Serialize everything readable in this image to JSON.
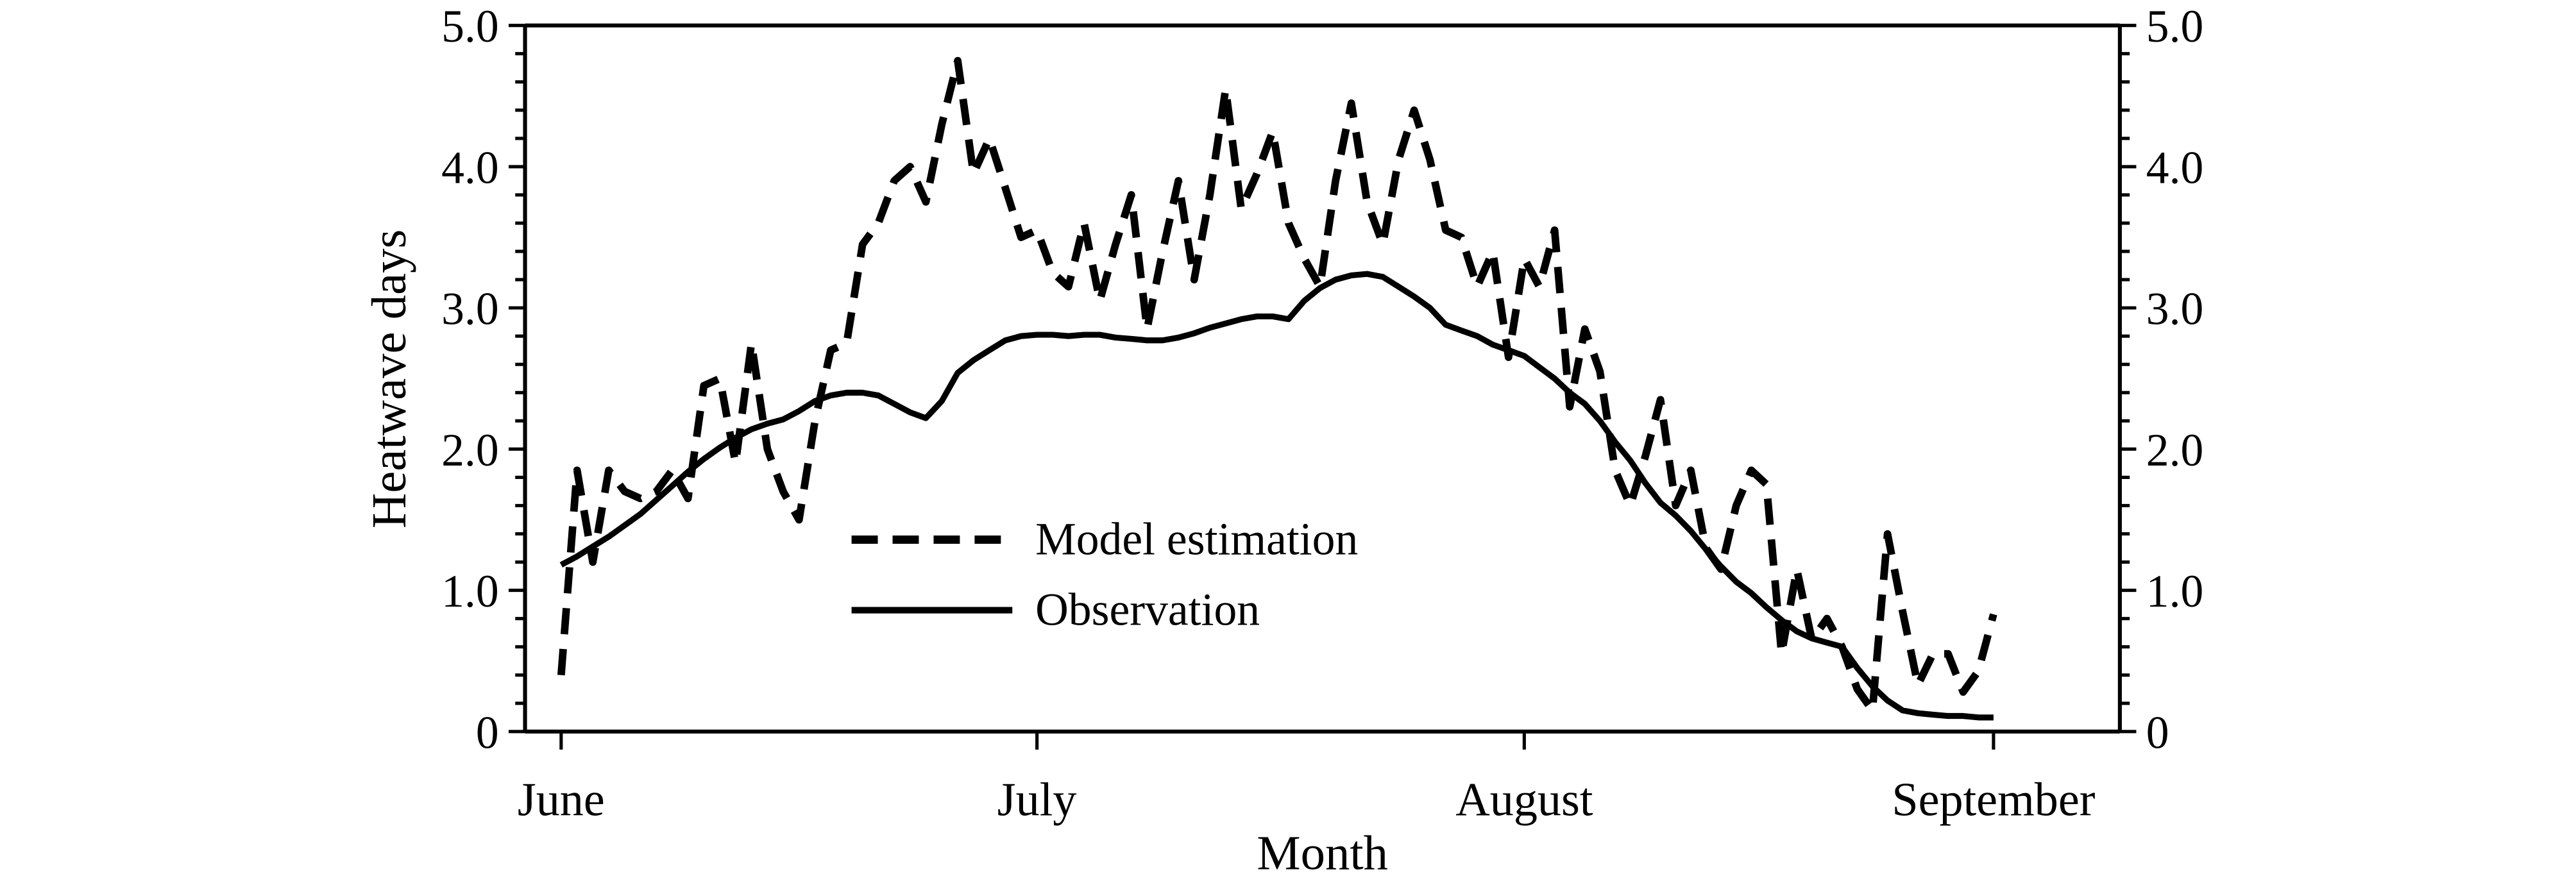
{
  "figure": {
    "background": "#ffffff",
    "line_color": "#000000"
  },
  "y_axis": {
    "title": "Heatwave days",
    "range": [
      0,
      5
    ],
    "major_step": 1.0,
    "minor_step": 0.2,
    "tick_labels": [
      "0",
      "1.0",
      "2.0",
      "3.0",
      "4.0",
      "5.0"
    ],
    "tick_values": [
      0,
      1,
      2,
      3,
      4,
      5
    ],
    "mirrored_right_axis": true
  },
  "x_axis": {
    "title": "Month",
    "tick_labels": [
      "June",
      "July",
      "August",
      "September"
    ],
    "month_day_counts": [
      30,
      31,
      31
    ]
  },
  "legend": {
    "items": [
      {
        "label": "Model estimation",
        "style": "dashed"
      },
      {
        "label": "Observation",
        "style": "solid"
      }
    ]
  },
  "chart_data": {
    "type": "line",
    "title": "",
    "xlabel": "Month",
    "ylabel": "Heatwave days",
    "ylim": [
      0,
      5
    ],
    "x_start": "June 1",
    "x_end": "September 1",
    "x_tick_labels": [
      "June",
      "July",
      "August",
      "September"
    ],
    "grid": false,
    "legend_position": "inside-left-center",
    "series": [
      {
        "name": "Model estimation",
        "style": "dashed",
        "values": [
          0.4,
          1.85,
          1.2,
          1.85,
          1.7,
          1.65,
          1.7,
          1.85,
          1.65,
          2.45,
          2.5,
          1.9,
          2.75,
          2.0,
          1.7,
          1.5,
          2.2,
          2.7,
          2.75,
          3.45,
          3.6,
          3.9,
          4.0,
          3.75,
          4.3,
          4.75,
          3.95,
          4.2,
          3.85,
          3.5,
          3.55,
          3.25,
          3.15,
          3.6,
          3.05,
          3.45,
          3.8,
          2.85,
          3.4,
          3.9,
          3.2,
          3.8,
          4.55,
          3.7,
          3.95,
          4.25,
          3.6,
          3.35,
          3.15,
          3.9,
          4.45,
          3.75,
          3.45,
          4.05,
          4.4,
          4.05,
          3.55,
          3.5,
          3.15,
          3.4,
          2.65,
          3.35,
          3.15,
          3.55,
          2.3,
          2.85,
          2.55,
          1.85,
          1.6,
          1.95,
          2.35,
          1.6,
          1.85,
          1.3,
          1.15,
          1.6,
          1.85,
          1.75,
          0.55,
          1.15,
          0.65,
          0.8,
          0.6,
          0.3,
          0.15,
          1.4,
          0.85,
          0.33,
          0.55,
          0.55,
          0.28,
          0.43,
          0.83
        ]
      },
      {
        "name": "Observation",
        "style": "solid",
        "values": [
          1.18,
          1.24,
          1.31,
          1.38,
          1.46,
          1.54,
          1.64,
          1.74,
          1.84,
          1.93,
          2.01,
          2.08,
          2.14,
          2.18,
          2.21,
          2.27,
          2.34,
          2.38,
          2.4,
          2.4,
          2.38,
          2.32,
          2.26,
          2.22,
          2.34,
          2.54,
          2.63,
          2.7,
          2.77,
          2.8,
          2.81,
          2.81,
          2.8,
          2.81,
          2.81,
          2.79,
          2.78,
          2.77,
          2.77,
          2.79,
          2.82,
          2.86,
          2.89,
          2.92,
          2.94,
          2.94,
          2.92,
          3.05,
          3.14,
          3.2,
          3.23,
          3.24,
          3.22,
          3.15,
          3.08,
          3.0,
          2.88,
          2.84,
          2.8,
          2.74,
          2.7,
          2.66,
          2.58,
          2.5,
          2.4,
          2.32,
          2.2,
          2.05,
          1.92,
          1.76,
          1.62,
          1.53,
          1.42,
          1.29,
          1.17,
          1.06,
          0.98,
          0.88,
          0.79,
          0.71,
          0.66,
          0.63,
          0.6,
          0.45,
          0.32,
          0.22,
          0.15,
          0.13,
          0.12,
          0.11,
          0.11,
          0.1,
          0.1
        ]
      }
    ]
  }
}
